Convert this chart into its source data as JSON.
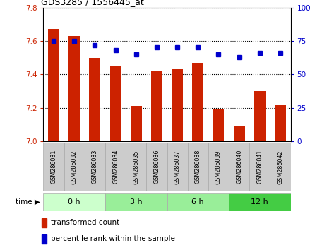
{
  "title": "GDS3285 / 1556445_at",
  "samples": [
    "GSM286031",
    "GSM286032",
    "GSM286033",
    "GSM286034",
    "GSM286035",
    "GSM286036",
    "GSM286037",
    "GSM286038",
    "GSM286039",
    "GSM286040",
    "GSM286041",
    "GSM286042"
  ],
  "transformed_counts": [
    7.67,
    7.63,
    7.5,
    7.45,
    7.21,
    7.42,
    7.43,
    7.47,
    7.19,
    7.09,
    7.3,
    7.22
  ],
  "percentile_ranks": [
    75,
    75,
    72,
    68,
    65,
    70,
    70,
    70,
    65,
    63,
    66,
    66
  ],
  "ylim_left": [
    7.0,
    7.8
  ],
  "ylim_right": [
    0,
    100
  ],
  "yticks_left": [
    7.0,
    7.2,
    7.4,
    7.6,
    7.8
  ],
  "yticks_right": [
    0,
    25,
    50,
    75,
    100
  ],
  "bar_color": "#cc2200",
  "dot_color": "#0000cc",
  "background_color": "#ffffff",
  "grid_color": "#000000",
  "group_colors": [
    "#ccffcc",
    "#99ee99",
    "#99ee99",
    "#44cc44"
  ],
  "group_labels": [
    "0 h",
    "3 h",
    "6 h",
    "12 h"
  ],
  "group_ranges": [
    [
      0,
      3
    ],
    [
      3,
      6
    ],
    [
      6,
      9
    ],
    [
      9,
      12
    ]
  ],
  "legend_bar_label": "transformed count",
  "legend_dot_label": "percentile rank within the sample",
  "tick_label_bg": "#cccccc"
}
